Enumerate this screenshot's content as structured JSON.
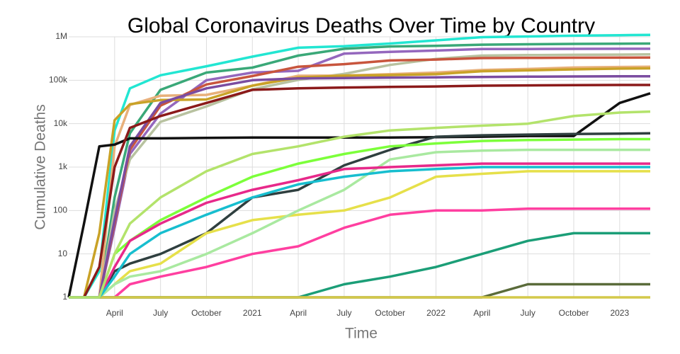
{
  "chart_data": {
    "type": "line",
    "title": "Global Coronavirus Deaths Over Time by Country",
    "x_label": "Time",
    "y_label": "Cumulative Deaths",
    "log_y": true,
    "grid": true,
    "x": [
      "2020-01",
      "2020-02",
      "2020-03",
      "2020-04",
      "2020-05",
      "2020-07",
      "2020-10",
      "2021-01",
      "2021-04",
      "2021-07",
      "2021-10",
      "2022-01",
      "2022-04",
      "2022-07",
      "2022-10",
      "2023-01",
      "2023-03"
    ],
    "xlim": [
      "2020-01",
      "2023-03"
    ],
    "xticks": [
      {
        "value": "2020-04",
        "label": "April"
      },
      {
        "value": "2020-07",
        "label": "July"
      },
      {
        "value": "2020-10",
        "label": "October"
      },
      {
        "value": "2021-01",
        "label": "2021"
      },
      {
        "value": "2021-04",
        "label": "April"
      },
      {
        "value": "2021-07",
        "label": "July"
      },
      {
        "value": "2021-10",
        "label": "October"
      },
      {
        "value": "2022-01",
        "label": "2022"
      },
      {
        "value": "2022-04",
        "label": "April"
      },
      {
        "value": "2022-07",
        "label": "July"
      },
      {
        "value": "2022-10",
        "label": "October"
      },
      {
        "value": "2023-01",
        "label": "2023"
      }
    ],
    "ylim": [
      1,
      1000000
    ],
    "yticks": [
      1,
      10,
      100,
      {
        "value": 1000,
        "label": "1k"
      },
      {
        "value": 10000,
        "label": "10k"
      },
      {
        "value": 100000,
        "label": "100k"
      },
      {
        "value": 1000000,
        "label": "1M"
      }
    ],
    "series": [
      {
        "color": "#22e6d2",
        "values": [
          1,
          1,
          4,
          7000,
          65000,
          130000,
          210000,
          350000,
          560000,
          610000,
          700000,
          830000,
          980000,
          1020000,
          1060000,
          1090000,
          1110000
        ]
      },
      {
        "color": "#3aa878",
        "values": [
          1,
          1,
          1,
          200,
          6000,
          60000,
          150000,
          195000,
          370000,
          530000,
          600000,
          620000,
          660000,
          675000,
          686000,
          695000,
          700000
        ]
      },
      {
        "color": "#9467bd",
        "values": [
          1,
          1,
          1,
          40,
          2000,
          17000,
          100000,
          150000,
          165000,
          410000,
          450000,
          482000,
          522000,
          525000,
          529000,
          530000,
          531000
        ]
      },
      {
        "color": "#b8c2a0",
        "values": [
          1,
          1,
          1,
          100,
          1500,
          11000,
          25000,
          62000,
          102000,
          140000,
          225000,
          310000,
          370000,
          380000,
          385000,
          390000,
          395000
        ]
      },
      {
        "color": "#c8553d",
        "values": [
          1,
          1,
          1,
          50,
          2500,
          26000,
          80000,
          125000,
          205000,
          235000,
          285000,
          300000,
          324000,
          327000,
          330000,
          332000,
          333000
        ]
      },
      {
        "color": "#e8b07a",
        "values": [
          1,
          1,
          1,
          3000,
          27000,
          44000,
          46000,
          75000,
          127000,
          128000,
          138000,
          150000,
          172000,
          182000,
          196000,
          202000,
          205000
        ]
      },
      {
        "color": "#c9a227",
        "values": [
          1,
          1,
          30,
          12000,
          28000,
          35000,
          36000,
          75000,
          115000,
          128000,
          131000,
          138000,
          161000,
          169000,
          178000,
          185000,
          188000
        ]
      },
      {
        "color": "#7b4ca0",
        "values": [
          1,
          1,
          1,
          60,
          3000,
          30000,
          65000,
          100000,
          110000,
          112000,
          115000,
          117000,
          119000,
          121000,
          122000,
          123000,
          123000
        ]
      },
      {
        "color": "#111111",
        "values": [
          1,
          50,
          3000,
          3300,
          4600,
          4600,
          4700,
          4800,
          4800,
          4800,
          4800,
          4900,
          5000,
          5200,
          5200,
          30000,
          50000
        ]
      },
      {
        "color": "#8b1a1a",
        "values": [
          1,
          1,
          5,
          1000,
          8000,
          15000,
          30000,
          60000,
          65000,
          68000,
          70000,
          72000,
          75000,
          76000,
          77000,
          78000,
          78000
        ]
      },
      {
        "color": "#2f3f3f",
        "values": [
          1,
          1,
          1,
          4,
          6,
          10,
          30,
          200,
          300,
          1100,
          2500,
          5000,
          5400,
          5600,
          5800,
          5900,
          6000
        ]
      },
      {
        "color": "#ff3fa0",
        "values": [
          1,
          1,
          1,
          1,
          2,
          3,
          5,
          10,
          15,
          40,
          80,
          100,
          100,
          110,
          110,
          110,
          110
        ]
      },
      {
        "color": "#e6e04a",
        "values": [
          1,
          1,
          1,
          2,
          4,
          6,
          30,
          60,
          80,
          100,
          200,
          600,
          700,
          800,
          800,
          800,
          800
        ]
      },
      {
        "color": "#7cff3a",
        "values": [
          1,
          1,
          1,
          10,
          20,
          60,
          200,
          600,
          1200,
          2000,
          3000,
          3500,
          4000,
          4200,
          4300,
          4400,
          4400
        ]
      },
      {
        "color": "#a9e9a0",
        "values": [
          1,
          1,
          1,
          2,
          3,
          4,
          10,
          30,
          100,
          300,
          1500,
          2200,
          2400,
          2500,
          2500,
          2500,
          2500
        ]
      },
      {
        "color": "#1b9e77",
        "values": [
          1,
          1,
          1,
          1,
          1,
          1,
          1,
          1,
          1,
          2,
          3,
          5,
          10,
          20,
          30,
          30,
          30
        ]
      },
      {
        "color": "#5a6b3a",
        "values": [
          1,
          1,
          1,
          1,
          1,
          1,
          1,
          1,
          1,
          1,
          1,
          1,
          1,
          2,
          2,
          2,
          2
        ]
      },
      {
        "color": "#d4c94a",
        "values": [
          1,
          1,
          1,
          1,
          1,
          1,
          1,
          1,
          1,
          1,
          1,
          1,
          1,
          1,
          1,
          1,
          1
        ]
      },
      {
        "color": "#e7298a",
        "values": [
          1,
          1,
          1,
          5,
          20,
          50,
          150,
          300,
          500,
          900,
          1000,
          1100,
          1200,
          1200,
          1200,
          1200,
          1200
        ]
      },
      {
        "color": "#17becf",
        "values": [
          1,
          1,
          1,
          3,
          10,
          30,
          80,
          200,
          400,
          600,
          800,
          900,
          1000,
          1000,
          1000,
          1000,
          1000
        ]
      },
      {
        "color": "#b3e36b",
        "values": [
          1,
          1,
          1,
          10,
          50,
          200,
          800,
          2000,
          3000,
          5000,
          7000,
          8000,
          9000,
          10000,
          15000,
          18000,
          19000
        ]
      }
    ]
  }
}
